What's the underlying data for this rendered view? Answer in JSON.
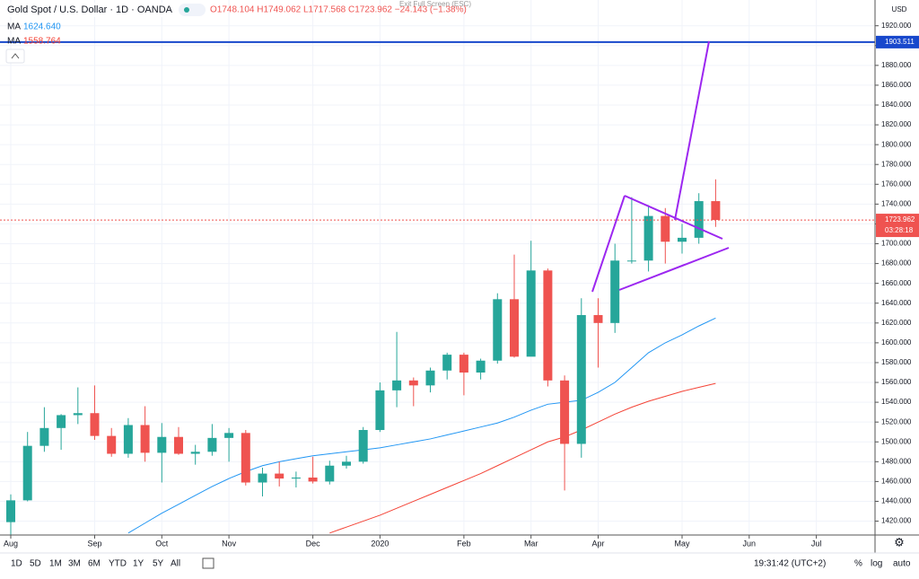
{
  "header": {
    "symbol": "Gold Spot / U.S. Dollar · 1D · OANDA",
    "ohlc": "O1748.104 H1749.062 L1717.568 C1723.962 −24.143 (−1.38%)",
    "exit": "Exit Full Screen (ESC)"
  },
  "chart_data": {
    "type": "candlestick",
    "categories": [
      "Aug",
      null,
      null,
      null,
      null,
      "Sep",
      null,
      null,
      null,
      "Oct",
      null,
      null,
      null,
      "Nov",
      null,
      null,
      null,
      null,
      "Dec",
      null,
      null,
      null,
      "2020",
      null,
      null,
      null,
      null,
      "Feb",
      null,
      null,
      null,
      "Mar",
      null,
      null,
      null,
      "Apr",
      null,
      null,
      null,
      null,
      "May",
      null,
      null,
      null,
      "Jun",
      null,
      null,
      null,
      "Jul",
      null,
      null,
      null
    ],
    "open": [
      1419,
      1441,
      1496,
      1514,
      1527,
      1529,
      1506,
      1488,
      1517,
      1489,
      1505,
      1488,
      1490,
      1504,
      1509,
      1459,
      1468,
      1463,
      1464,
      1460,
      1476,
      1480,
      1512,
      1552,
      1562,
      1557,
      1572,
      1588,
      1570,
      1582,
      1644,
      1586,
      1673,
      1562,
      1498,
      1628,
      1620,
      1683,
      1683,
      1728,
      1702,
      1706,
      1743,
      null,
      null,
      null,
      null,
      null,
      null,
      null,
      null,
      null
    ],
    "high": [
      1447,
      1510,
      1535,
      1528,
      1555,
      1557,
      1514,
      1524,
      1536,
      1519,
      1515,
      1497,
      1518,
      1514,
      1512,
      1474,
      1480,
      1470,
      1485,
      1481,
      1486,
      1515,
      1560,
      1611,
      1565,
      1575,
      1590,
      1590,
      1584,
      1650,
      1689,
      1703,
      1675,
      1567,
      1645,
      1645,
      1700,
      1747,
      1739,
      1736,
      1720,
      1751,
      1765,
      null,
      null,
      null,
      null,
      null,
      null,
      null,
      null,
      null
    ],
    "low": [
      1400,
      1440,
      1490,
      1492,
      1518,
      1502,
      1485,
      1484,
      1480,
      1459,
      1487,
      1477,
      1486,
      1480,
      1456,
      1445,
      1455,
      1454,
      1458,
      1457,
      1473,
      1478,
      1510,
      1535,
      1536,
      1550,
      1563,
      1547,
      1563,
      1579,
      1585,
      1590,
      1556,
      1451,
      1484,
      1575,
      1610,
      1680,
      1672,
      1680,
      1690,
      1700,
      1717,
      null,
      null,
      null,
      null,
      null,
      null,
      null,
      null,
      null
    ],
    "close": [
      1441,
      1496,
      1514,
      1527,
      1529,
      1506,
      1488,
      1517,
      1489,
      1505,
      1488,
      1490,
      1504,
      1509,
      1459,
      1468,
      1463,
      1464,
      1460,
      1476,
      1480,
      1512,
      1552,
      1562,
      1557,
      1572,
      1588,
      1570,
      1582,
      1644,
      1586,
      1673,
      1562,
      1498,
      1628,
      1620,
      1683,
      1683,
      1728,
      1702,
      1706,
      1743,
      1724,
      null,
      null,
      null,
      null,
      null,
      null,
      null,
      null,
      null
    ],
    "up_color": "#26a69a",
    "down_color": "#ef5350",
    "series": [
      {
        "name": "MA",
        "label": "1624.640",
        "color": "#2196f3",
        "values": [
          null,
          null,
          null,
          null,
          null,
          null,
          null,
          1408,
          1418,
          1428,
          1437,
          1446,
          1455,
          1463,
          1470,
          1476,
          1480,
          1483,
          1486,
          1488,
          1490,
          1492,
          1494,
          1497,
          1500,
          1503,
          1507,
          1511,
          1515,
          1519,
          1525,
          1532,
          1538,
          1540,
          1542,
          1550,
          1560,
          1575,
          1590,
          1600,
          1608,
          1617,
          1625,
          null,
          null,
          null,
          null,
          null,
          null,
          null,
          null,
          null
        ]
      },
      {
        "name": "MA",
        "label": "1558.764",
        "color": "#f44336",
        "values": [
          null,
          null,
          null,
          null,
          null,
          null,
          null,
          null,
          null,
          null,
          null,
          null,
          null,
          null,
          null,
          null,
          null,
          null,
          null,
          1408,
          1414,
          1420,
          1426,
          1433,
          1440,
          1447,
          1454,
          1461,
          1468,
          1476,
          1484,
          1492,
          1500,
          1505,
          1512,
          1520,
          1528,
          1535,
          1541,
          1546,
          1551,
          1555,
          1559,
          null,
          null,
          null,
          null,
          null,
          null,
          null,
          null,
          null
        ]
      }
    ],
    "price_lines": [
      {
        "value": 1903.511,
        "color": "#1848cc"
      },
      {
        "value": 1723.962,
        "color": "#ef5350",
        "countdown": "03:28:18"
      }
    ],
    "currency": "USD",
    "ylim": [
      1406,
      1946
    ],
    "yticks": [
      {
        "value": 1420,
        "label": "1420.000"
      },
      {
        "value": 1440,
        "label": "1440.000"
      },
      {
        "value": 1460,
        "label": "1460.000"
      },
      {
        "value": 1480,
        "label": "1480.000"
      },
      {
        "value": 1500,
        "label": "1500.000"
      },
      {
        "value": 1520,
        "label": "1520.000"
      },
      {
        "value": 1540,
        "label": "1540.000"
      },
      {
        "value": 1560,
        "label": "1560.000"
      },
      {
        "value": 1580,
        "label": "1580.000"
      },
      {
        "value": 1600,
        "label": "1600.000"
      },
      {
        "value": 1620,
        "label": "1620.000"
      },
      {
        "value": 1640,
        "label": "1640.000"
      },
      {
        "value": 1660,
        "label": "1660.000"
      },
      {
        "value": 1680,
        "label": "1680.000"
      },
      {
        "value": 1700,
        "label": "1700.000"
      },
      {
        "value": 1720,
        "label": "1720.000"
      },
      {
        "value": 1740,
        "label": "1740.000"
      },
      {
        "value": 1760,
        "label": "1760.000"
      },
      {
        "value": 1780,
        "label": "1780.000"
      },
      {
        "value": 1800,
        "label": "1800.000"
      },
      {
        "value": 1820,
        "label": "1820.000"
      },
      {
        "value": 1840,
        "label": "1840.000"
      },
      {
        "value": 1860,
        "label": "1860.000"
      },
      {
        "value": 1880,
        "label": "1880.000"
      },
      {
        "value": 1900,
        "label": "1900.000"
      },
      {
        "value": 1920,
        "label": "1920.000"
      }
    ],
    "grid": true
  },
  "toolbar": {
    "ranges": [
      "1D",
      "5D",
      "1M",
      "3M",
      "6M",
      "YTD",
      "1Y",
      "5Y",
      "All"
    ],
    "clock": "19:31:42 (UTC+2)",
    "options": [
      "%",
      "log",
      "auto"
    ]
  }
}
